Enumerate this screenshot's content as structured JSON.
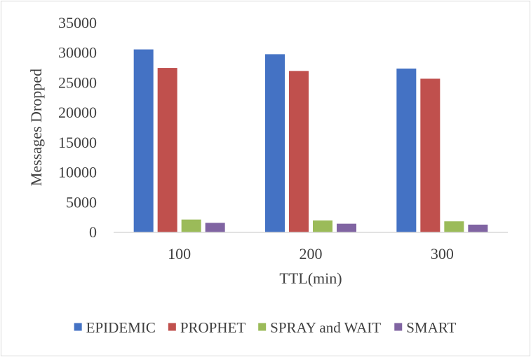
{
  "chart_data": {
    "type": "bar",
    "title": "",
    "xlabel": "TTL(min)",
    "ylabel": "Messages Dropped",
    "categories": [
      "100",
      "200",
      "300"
    ],
    "ylim": [
      0,
      35000
    ],
    "yticks": [
      0,
      5000,
      10000,
      15000,
      20000,
      25000,
      30000,
      35000
    ],
    "ytick_labels": [
      "0",
      "5000",
      "10000",
      "15000",
      "20000",
      "25000",
      "30000",
      "35000"
    ],
    "grid": false,
    "legend_position": "bottom",
    "series": [
      {
        "name": "EPIDEMIC",
        "color": "#4472c4",
        "values": [
          30600,
          29800,
          27400
        ]
      },
      {
        "name": "PROPHET",
        "color": "#c0504d",
        "values": [
          27500,
          27000,
          25700
        ]
      },
      {
        "name": "SPRAY and WAIT",
        "color": "#9bbb59",
        "values": [
          2150,
          2000,
          1850
        ]
      },
      {
        "name": "SMART",
        "color": "#8064a2",
        "values": [
          1600,
          1450,
          1300
        ]
      }
    ]
  }
}
